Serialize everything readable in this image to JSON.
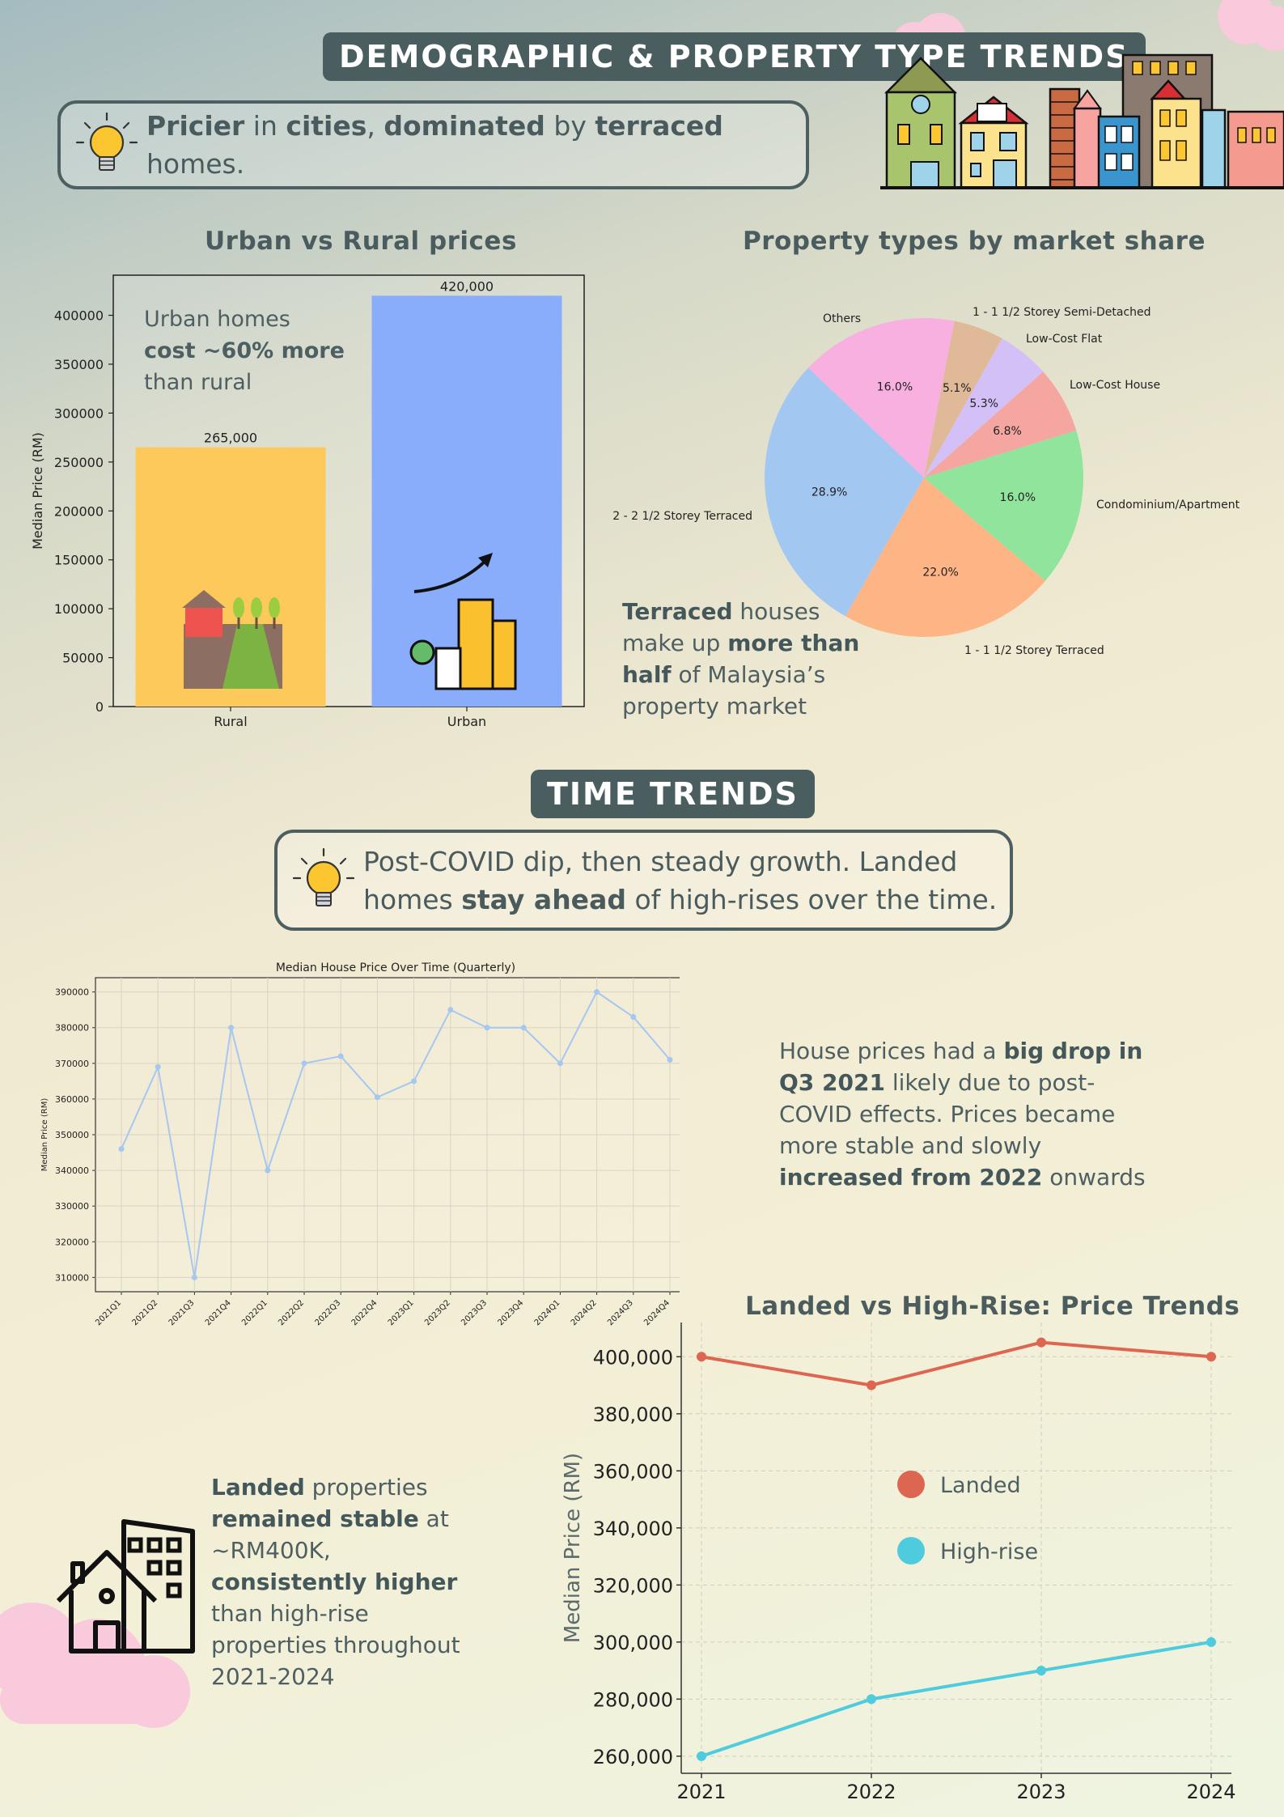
{
  "header": {
    "banner_title": "DEMOGRAPHIC & PROPERTY TYPE TRENDS",
    "insight_parts": [
      {
        "t": "Pricier",
        "b": true
      },
      {
        "t": " in ",
        "b": false
      },
      {
        "t": "cities",
        "b": true
      },
      {
        "t": ", ",
        "b": false
      },
      {
        "t": "dominated",
        "b": true
      },
      {
        "t": " by ",
        "b": false
      },
      {
        "t": "terraced",
        "b": true
      },
      {
        "t": " homes.",
        "b": false
      }
    ]
  },
  "urban_rural": {
    "title": "Urban vs Rural prices",
    "note_parts": [
      {
        "t": "Urban homes ",
        "b": false
      },
      {
        "t": "cost ~60% more",
        "b": true
      },
      {
        "t": " than rural",
        "b": false
      }
    ]
  },
  "property_types": {
    "title": "Property types by market share",
    "note_parts": [
      {
        "t": "Terraced",
        "b": true
      },
      {
        "t": " houses make up ",
        "b": false
      },
      {
        "t": "more than half",
        "b": true
      },
      {
        "t": " of Malaysia’s property market",
        "b": false
      }
    ]
  },
  "time_trends": {
    "banner_title": "TIME TRENDS",
    "insight_parts": [
      {
        "t": "Post-COVID dip, then steady growth. Landed homes ",
        "b": false
      },
      {
        "t": "stay ahead",
        "b": true
      },
      {
        "t": " of high-rises over the time.",
        "b": false
      }
    ],
    "quarterly_note_parts": [
      {
        "t": "House prices had a ",
        "b": false
      },
      {
        "t": "big drop in Q3 2021",
        "b": true
      },
      {
        "t": " likely due to post-COVID effects. Prices became more stable and slowly ",
        "b": false
      },
      {
        "t": "increased from 2022",
        "b": true
      },
      {
        "t": " onwards",
        "b": false
      }
    ],
    "landed_note_parts": [
      {
        "t": "Landed",
        "b": true
      },
      {
        "t": " properties ",
        "b": false
      },
      {
        "t": "remained stable",
        "b": true
      },
      {
        "t": " at ~RM400K, ",
        "b": false
      },
      {
        "t": "consistently higher",
        "b": true
      },
      {
        "t": " than high-rise properties throughout 2021-2024",
        "b": false
      }
    ],
    "landed_title": "Landed vs High-Rise: Price Trends"
  },
  "icons": [
    "lightbulb-icon",
    "town-houses-illustration",
    "farm-house-icon",
    "city-growth-icon",
    "house-building-icon",
    "cloud-decoration"
  ],
  "colors": {
    "banner": "#4a5e60",
    "rural": "#fdc95a",
    "urban": "#89acfb",
    "landed": "#dd6652",
    "highrise": "#4fcbde",
    "quarterly_line": "#a5c7f0"
  },
  "chart_data": [
    {
      "type": "bar",
      "categories": [
        "Rural",
        "Urban"
      ],
      "values": [
        265000,
        420000
      ],
      "value_labels": [
        "265,000",
        "420,000"
      ],
      "ylabel": "Median Price (RM)",
      "ylim": [
        0,
        441000
      ],
      "yticks": [
        0,
        50000,
        100000,
        150000,
        200000,
        250000,
        300000,
        350000,
        400000
      ],
      "colors": [
        "#fdc95a",
        "#89acfb"
      ]
    },
    {
      "type": "pie",
      "slices": [
        {
          "label": "1 - 1 1/2 Storey Semi-Detached",
          "value": 5.1,
          "pct": "5.1%",
          "color": "#dfb998"
        },
        {
          "label": "Low-Cost Flat",
          "value": 5.3,
          "pct": "5.3%",
          "color": "#d2c0f7"
        },
        {
          "label": "Low-Cost House",
          "value": 6.8,
          "pct": "6.8%",
          "color": "#f6a6a0"
        },
        {
          "label": "Condominium/Apartment",
          "value": 16.0,
          "pct": "16.0%",
          "color": "#90e49c"
        },
        {
          "label": "1 - 1 1/2 Storey Terraced",
          "value": 22.0,
          "pct": "22.0%",
          "color": "#fdb585"
        },
        {
          "label": "2 - 2 1/2 Storey Terraced",
          "value": 28.9,
          "pct": "28.9%",
          "color": "#a2c7f1"
        },
        {
          "label": "Others",
          "value": 16.0,
          "pct": "16.0%",
          "color": "#f8b0e1"
        }
      ]
    },
    {
      "type": "line",
      "title": "Median House Price Over Time (Quarterly)",
      "ylabel": "Median Price (RM)",
      "x": [
        "2021Q1",
        "2021Q2",
        "2021Q3",
        "2021Q4",
        "2022Q1",
        "2022Q2",
        "2022Q3",
        "2022Q4",
        "2023Q1",
        "2023Q2",
        "2023Q3",
        "2023Q4",
        "2024Q1",
        "2024Q2",
        "2024Q3",
        "2024Q4"
      ],
      "values": [
        346000,
        369000,
        310000,
        380000,
        340000,
        370000,
        372000,
        360500,
        365000,
        385000,
        380000,
        380000,
        370000,
        390000,
        383000,
        371000
      ],
      "ylim": [
        306000,
        394000
      ],
      "yticks": [
        310000,
        320000,
        330000,
        340000,
        350000,
        360000,
        370000,
        380000,
        390000
      ],
      "grid": true
    },
    {
      "type": "line",
      "title": "Landed vs High-Rise: Price Trends",
      "ylabel": "Median Price (RM)",
      "x": [
        "2021",
        "2022",
        "2023",
        "2024"
      ],
      "series": [
        {
          "name": "Landed",
          "values": [
            400000,
            390000,
            405000,
            400000
          ],
          "color": "#dd6652"
        },
        {
          "name": "High-rise",
          "values": [
            260000,
            280000,
            290000,
            300000
          ],
          "color": "#4fcbde"
        }
      ],
      "ylim": [
        254000,
        412000
      ],
      "yticks": [
        260000,
        280000,
        300000,
        320000,
        340000,
        360000,
        380000,
        400000
      ],
      "legend": "center",
      "grid": true
    }
  ]
}
